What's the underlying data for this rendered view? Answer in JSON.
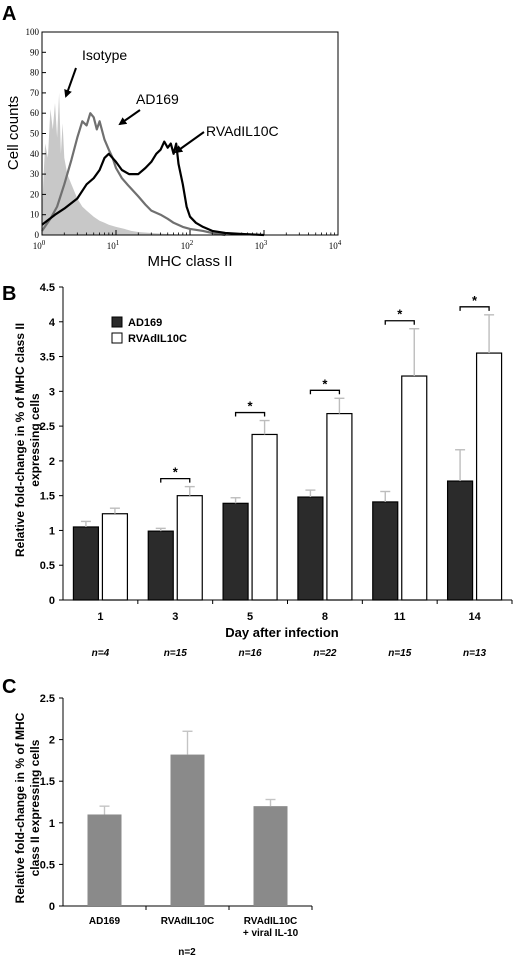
{
  "chart_data": [
    {
      "panel": "A",
      "type": "line",
      "xlabel": "MHC class II",
      "ylabel": "Cell counts",
      "xscale": "log",
      "xlim": [
        1,
        10000
      ],
      "ylim": [
        0,
        100
      ],
      "x_ticks": [
        "10",
        "10",
        "10",
        "10",
        "10"
      ],
      "x_tick_exponents": [
        "0",
        "1",
        "2",
        "3",
        "4"
      ],
      "y_ticks": [
        "0",
        "10",
        "20",
        "30",
        "40",
        "50",
        "60",
        "70",
        "80",
        "90",
        "100"
      ],
      "series": [
        {
          "name": "Isotype",
          "style": "filled",
          "color": "#c8c8c8",
          "x": [
            1.0,
            1.1,
            1.2,
            1.3,
            1.4,
            1.5,
            1.6,
            1.7,
            1.8,
            1.9,
            2.0,
            2.2,
            2.5,
            3.0,
            3.5,
            4.0,
            5.0,
            6.0,
            7.0,
            8.0,
            10.0,
            13.0,
            16.0,
            20.0,
            30.0,
            50.0,
            100.0
          ],
          "y": [
            12,
            45,
            38,
            62,
            52,
            65,
            48,
            70,
            40,
            55,
            38,
            30,
            25,
            18,
            14,
            12,
            9,
            7,
            6,
            5,
            4,
            3,
            2,
            1.5,
            1,
            0.5,
            0
          ]
        },
        {
          "name": "AD169",
          "style": "line",
          "color": "#707070",
          "x": [
            1.0,
            1.3,
            1.6,
            2.0,
            2.5,
            3.0,
            3.5,
            4.0,
            4.5,
            5.0,
            5.5,
            6.0,
            7.0,
            8.0,
            9.0,
            10.0,
            12.0,
            15.0,
            20.0,
            25.0,
            30.0,
            40.0,
            50.0,
            60.0,
            80.0,
            100.0,
            150.0,
            200.0,
            300.0
          ],
          "y": [
            2,
            8,
            14,
            25,
            37,
            48,
            56,
            54,
            60,
            58,
            52,
            56,
            47,
            42,
            38,
            33,
            28,
            24,
            19,
            15,
            12,
            10,
            8,
            6,
            4,
            3,
            2,
            1,
            0
          ]
        },
        {
          "name": "RVAdIL10C",
          "style": "line",
          "color": "#000000",
          "x": [
            1.0,
            1.5,
            2.0,
            3.0,
            4.0,
            5.0,
            6.0,
            7.0,
            8.0,
            10.0,
            12.0,
            15.0,
            20.0,
            25.0,
            30.0,
            35.0,
            40.0,
            45.0,
            50.0,
            55.0,
            60.0,
            65.0,
            70.0,
            80.0,
            90.0,
            100.0,
            120.0,
            150.0,
            200.0,
            300.0,
            500.0,
            1000.0
          ],
          "y": [
            5,
            10,
            13,
            18,
            25,
            28,
            32,
            38,
            40,
            36,
            32,
            30,
            30,
            33,
            36,
            40,
            42,
            46,
            43,
            45,
            40,
            45,
            35,
            25,
            14,
            9,
            6,
            4,
            2,
            1,
            0.5,
            0
          ]
        }
      ],
      "annotations": [
        "Isotype",
        "AD169",
        "RVAdIL10C"
      ]
    },
    {
      "panel": "B",
      "type": "bar",
      "xlabel": "Day after infection",
      "ylabel": "Relative fold-change in % of MHC class II expressing cells",
      "ylim": [
        0,
        4.5
      ],
      "y_ticks": [
        "0",
        "0.5",
        "1",
        "1.5",
        "2",
        "2.5",
        "3",
        "3.5",
        "4",
        "4.5"
      ],
      "categories": [
        "1",
        "3",
        "5",
        "8",
        "11",
        "14"
      ],
      "n_labels": [
        "n=4",
        "n=15",
        "n=16",
        "n=22",
        "n=15",
        "n=13"
      ],
      "series": [
        {
          "name": "AD169",
          "color": "#2b2b2b",
          "values": [
            1.05,
            0.99,
            1.39,
            1.48,
            1.41,
            1.71
          ],
          "errors": [
            0.08,
            0.04,
            0.08,
            0.1,
            0.15,
            0.45
          ]
        },
        {
          "name": "RVAdIL10C",
          "color": "#ffffff",
          "values": [
            1.24,
            1.5,
            2.38,
            2.68,
            3.22,
            3.55
          ],
          "errors": [
            0.08,
            0.13,
            0.2,
            0.22,
            0.68,
            0.55
          ]
        }
      ],
      "significance": [
        "",
        "*",
        "*",
        "*",
        "*",
        "*"
      ],
      "legend": "top-left"
    },
    {
      "panel": "C",
      "type": "bar",
      "xlabel": "",
      "ylabel": "Relative fold-change in % of MHC class II expressing cells",
      "ylim": [
        0,
        2.5
      ],
      "y_ticks": [
        "0",
        "0.5",
        "1",
        "1.5",
        "2",
        "2.5"
      ],
      "categories": [
        [
          "AD169"
        ],
        [
          "RVAdIL10C"
        ],
        [
          "RVAdIL10C",
          "+ viral IL-10"
        ]
      ],
      "values": [
        1.1,
        1.82,
        1.2
      ],
      "errors": [
        0.1,
        0.28,
        0.08
      ],
      "color": "#8a8a8a",
      "footnote": "n=2"
    }
  ],
  "text": {
    "panel_a": "A",
    "panel_b": "B",
    "panel_c": "C",
    "a_ylabel": "Cell counts",
    "a_xlabel": "MHC class II",
    "annot_isotype": "Isotype",
    "annot_ad169": "AD169",
    "annot_rv": "RVAdIL10C",
    "b_ylabel_line1": "Relative fold-change in % of MHC class II",
    "b_ylabel_line2": "expressing cells",
    "b_xlabel": "Day after infection",
    "legend_ad169": "AD169",
    "legend_rv": "RVAdIL10C",
    "c_ylabel_line1": "Relative fold-change in % of MHC",
    "c_ylabel_line2": "class II expressing cells",
    "c_footnote": "n=2"
  }
}
